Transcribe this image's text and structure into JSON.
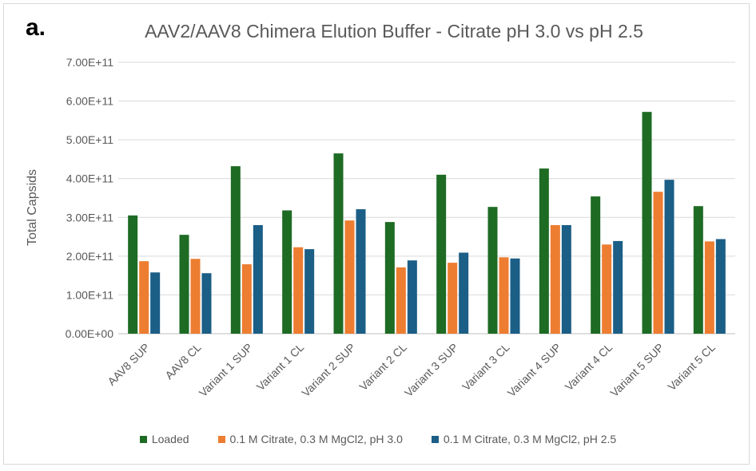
{
  "panel_label": "a.",
  "chart_data": {
    "type": "bar",
    "title": "AAV2/AAV8 Chimera Elution Buffer - Citrate pH 3.0 vs pH 2.5",
    "xlabel": "",
    "ylabel": "Total Capsids",
    "ylim": [
      0,
      700000000000.0
    ],
    "yticks": [
      "0.00E+00",
      "1.00E+11",
      "2.00E+11",
      "3.00E+11",
      "4.00E+11",
      "5.00E+11",
      "6.00E+11",
      "7.00E+11"
    ],
    "grid": true,
    "legend_position": "bottom",
    "categories": [
      "AAV8 SUP",
      "AAV8 CL",
      "Variant 1 SUP",
      "Variant 1 CL",
      "Variant 2 SUP",
      "Variant 2 CL",
      "Variant 3 SUP",
      "Variant 3 CL",
      "Variant 4 SUP",
      "Variant 4 CL",
      "Variant 5 SUP",
      "Variant 5 CL"
    ],
    "series": [
      {
        "name": "Loaded",
        "color": "#1e6b24",
        "values": [
          305000000000.0,
          255000000000.0,
          432000000000.0,
          318000000000.0,
          465000000000.0,
          288000000000.0,
          410000000000.0,
          327000000000.0,
          426000000000.0,
          354000000000.0,
          572000000000.0,
          329000000000.0
        ]
      },
      {
        "name": "0.1 M Citrate, 0.3 M MgCl2, pH 3.0",
        "color": "#ed7d31",
        "values": [
          187000000000.0,
          193000000000.0,
          179000000000.0,
          223000000000.0,
          292000000000.0,
          171000000000.0,
          183000000000.0,
          197000000000.0,
          280000000000.0,
          230000000000.0,
          366000000000.0,
          238000000000.0
        ]
      },
      {
        "name": "0.1 M Citrate, 0.3 M MgCl2, pH 2.5",
        "color": "#1b5e86",
        "values": [
          158000000000.0,
          156000000000.0,
          280000000000.0,
          218000000000.0,
          321000000000.0,
          189000000000.0,
          209000000000.0,
          194000000000.0,
          280000000000.0,
          239000000000.0,
          397000000000.0,
          244000000000.0
        ]
      }
    ]
  }
}
